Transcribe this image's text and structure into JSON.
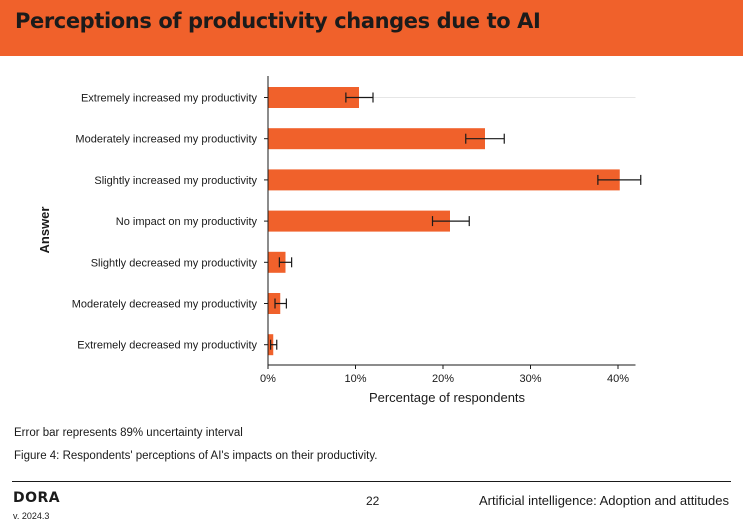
{
  "header": {
    "title": "Perceptions of productivity changes due to AI"
  },
  "notes": {
    "error_bar": "Error bar represents 89% uncertainty interval",
    "caption": "Figure 4: Respondents' perceptions of AI's impacts on their productivity."
  },
  "footer": {
    "logo": "DORA",
    "version": "v. 2024.3",
    "page_number": "22",
    "section": "Artificial intelligence: Adoption and attitudes"
  },
  "colors": {
    "bar": "#f0612b",
    "banner": "#f0612b",
    "text": "#1a1a1a"
  },
  "chart_data": {
    "type": "bar",
    "orientation": "horizontal",
    "xlabel": "Percentage of respondents",
    "ylabel": "Answer",
    "xlim": [
      0,
      42
    ],
    "xticks": [
      0,
      10,
      20,
      30,
      40
    ],
    "xtick_labels": [
      "0%",
      "10%",
      "20%",
      "30%",
      "40%"
    ],
    "grid": false,
    "categories": [
      "Extremely increased my productivity",
      "Moderately increased my productivity",
      "Slightly increased my productivity",
      "No impact on my productivity",
      "Slightly decreased my productivity",
      "Moderately decreased my productivity",
      "Extremely decreased my productivity"
    ],
    "values": [
      10.4,
      24.8,
      40.2,
      20.8,
      2.0,
      1.4,
      0.6
    ],
    "error_low": [
      8.9,
      22.6,
      37.7,
      18.8,
      1.3,
      0.8,
      0.3
    ],
    "error_high": [
      12.0,
      27.0,
      42.6,
      23.0,
      2.7,
      2.1,
      1.0
    ],
    "error_bar_note": "89% uncertainty interval"
  }
}
